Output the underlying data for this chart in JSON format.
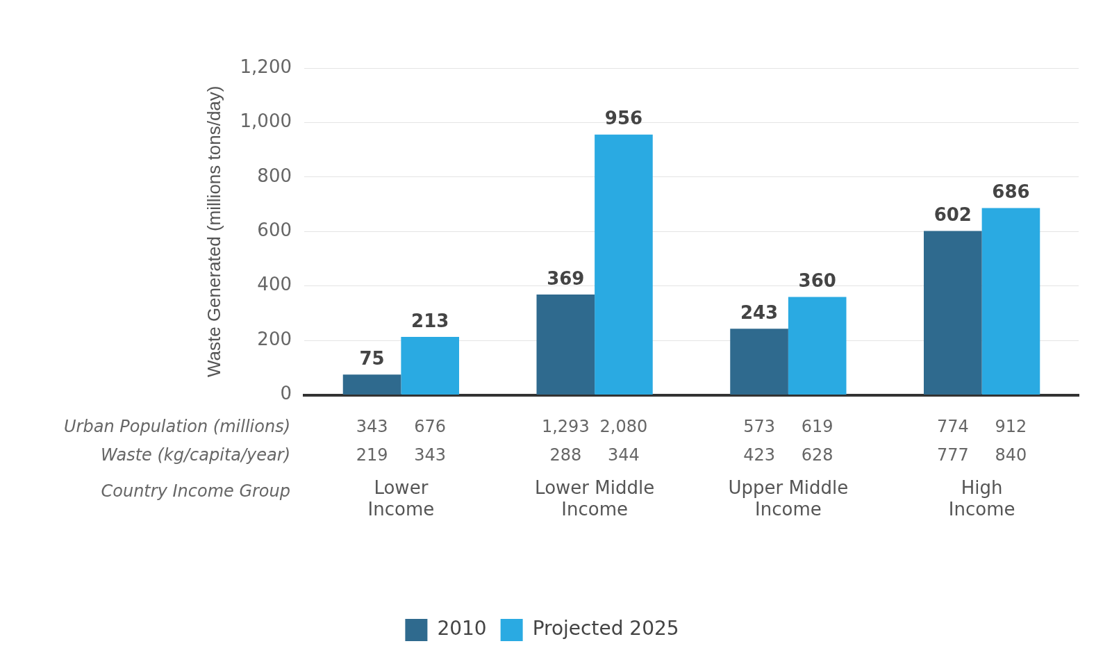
{
  "chart_data": {
    "type": "bar",
    "ylabel": "Waste Generated (millions tons/day)",
    "xlabel": "Country Income Group",
    "categories": [
      "Lower Income",
      "Lower Middle Income",
      "Upper Middle Income",
      "High Income"
    ],
    "series": [
      {
        "name": "2010",
        "color": "#2f6a8e",
        "values": [
          75,
          369,
          243,
          602
        ]
      },
      {
        "name": "Projected 2025",
        "color": "#2aaae2",
        "values": [
          213,
          956,
          360,
          686
        ]
      }
    ],
    "ylim": [
      0,
      1200
    ],
    "yticks": [
      0,
      {
        "value": 200,
        "label": "200"
      },
      {
        "value": 400,
        "label": "400"
      },
      {
        "value": 600,
        "label": "600"
      },
      {
        "value": 800,
        "label": "800"
      },
      {
        "value": 1000,
        "label": "1,000"
      },
      {
        "value": 1200,
        "label": "1,200"
      }
    ],
    "grid": "y",
    "legend": "bottom",
    "data_labels": true,
    "annotations": [
      "Urban Population (millions)",
      "343",
      "676",
      "1,293",
      "2,080",
      "573",
      "619",
      "774",
      "912",
      "Waste (kg/capita/year)",
      "219",
      "343",
      "288",
      "344",
      "423",
      "628",
      "777",
      "840"
    ]
  }
}
